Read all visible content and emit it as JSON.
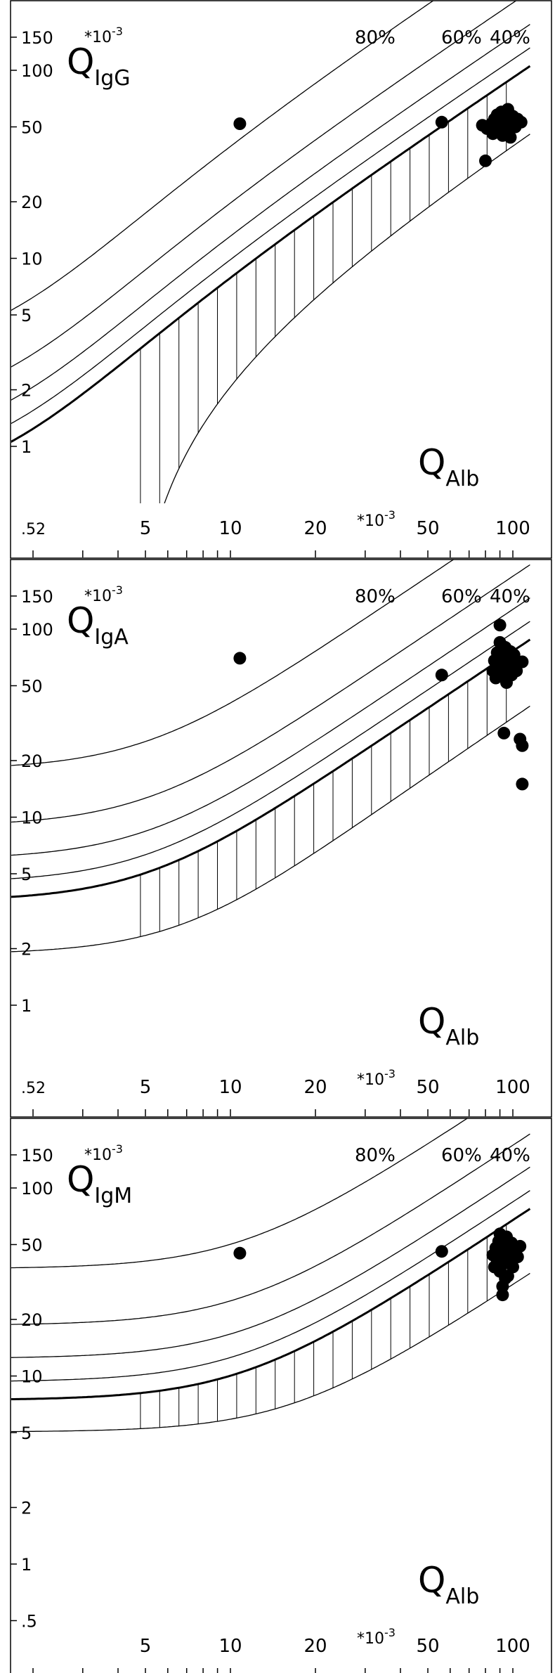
{
  "chart_data": [
    {
      "type": "scatter",
      "title": "",
      "ylabel": "Q",
      "ylabel_sub": "IgG",
      "ylabel_unit": "*10",
      "ylabel_unit_exp": "-3",
      "xlabel": "Q",
      "xlabel_sub": "Alb",
      "xlabel_unit": "*10",
      "xlabel_unit_exp": "-3",
      "x_scale": "log",
      "y_scale": "log",
      "xlim": [
        2,
        110
      ],
      "ylim": [
        0.4,
        170
      ],
      "x_ticks": [
        ".5",
        "5",
        "10",
        "20",
        "50",
        "100"
      ],
      "x_tick_values": [
        2,
        5,
        10,
        20,
        50,
        100
      ],
      "x_first_tick_prefix": ".5",
      "x_first_tick_sub": "2",
      "y_ticks": [
        "150",
        "100",
        "50",
        "20",
        "10",
        "5",
        "2",
        "1"
      ],
      "y_tick_values": [
        150,
        100,
        50,
        20,
        10,
        5,
        2,
        1
      ],
      "curve_labels": [
        "80%",
        "60%",
        "40%"
      ],
      "curve_params": {
        "a": 0.93,
        "b": 6e-06,
        "c": 1.7
      },
      "curves": [
        {
          "name": "80%",
          "fraction": 0.8
        },
        {
          "name": "60%",
          "fraction": 0.6
        },
        {
          "name": "40%",
          "fraction": 0.4
        },
        {
          "name": "20%",
          "fraction": 0.2
        },
        {
          "name": "upper limit",
          "fraction": 0,
          "bold": true
        },
        {
          "name": "lower limit",
          "fraction": -1
        }
      ],
      "points": [
        {
          "x": 10.8,
          "y": 52
        },
        {
          "x": 56,
          "y": 53
        },
        {
          "x": 80,
          "y": 33
        },
        {
          "x": 78,
          "y": 51
        },
        {
          "x": 81,
          "y": 49
        },
        {
          "x": 84,
          "y": 52
        },
        {
          "x": 86,
          "y": 55
        },
        {
          "x": 87,
          "y": 50
        },
        {
          "x": 88,
          "y": 58
        },
        {
          "x": 89,
          "y": 47
        },
        {
          "x": 90,
          "y": 53
        },
        {
          "x": 91,
          "y": 60
        },
        {
          "x": 92,
          "y": 45
        },
        {
          "x": 93,
          "y": 51
        },
        {
          "x": 94,
          "y": 56
        },
        {
          "x": 95,
          "y": 49
        },
        {
          "x": 96,
          "y": 62
        },
        {
          "x": 97,
          "y": 54
        },
        {
          "x": 98,
          "y": 44
        },
        {
          "x": 99,
          "y": 52
        },
        {
          "x": 100,
          "y": 57
        },
        {
          "x": 102,
          "y": 50
        },
        {
          "x": 104,
          "y": 55
        },
        {
          "x": 107,
          "y": 53
        },
        {
          "x": 85,
          "y": 46
        },
        {
          "x": 92,
          "y": 57
        }
      ]
    },
    {
      "type": "scatter",
      "title": "",
      "ylabel": "Q",
      "ylabel_sub": "IgA",
      "ylabel_unit": "*10",
      "ylabel_unit_exp": "-3",
      "xlabel": "Q",
      "xlabel_sub": "Alb",
      "xlabel_unit": "*10",
      "xlabel_unit_exp": "-3",
      "x_scale": "log",
      "y_scale": "log",
      "xlim": [
        2,
        110
      ],
      "ylim": [
        0.4,
        170
      ],
      "x_ticks": [
        ".5",
        "5",
        "10",
        "20",
        "50",
        "100"
      ],
      "x_tick_values": [
        2,
        5,
        10,
        20,
        50,
        100
      ],
      "x_first_tick_prefix": ".5",
      "x_first_tick_sub": "2",
      "y_ticks": [
        "150",
        "100",
        "50",
        "20",
        "10",
        "5",
        "2",
        "1"
      ],
      "y_tick_values": [
        150,
        100,
        50,
        20,
        10,
        5,
        2,
        1
      ],
      "curve_labels": [
        "80%",
        "60%",
        "40%"
      ],
      "curve_params": {
        "a": 0.77,
        "b": 3.1e-05,
        "c": 0.71
      },
      "curves": [
        {
          "name": "80%",
          "fraction": 0.8
        },
        {
          "name": "60%",
          "fraction": 0.6
        },
        {
          "name": "40%",
          "fraction": 0.4
        },
        {
          "name": "20%",
          "fraction": 0.2
        },
        {
          "name": "upper limit",
          "fraction": 0,
          "bold": true
        },
        {
          "name": "lower limit",
          "fraction": -1
        }
      ],
      "points": [
        {
          "x": 10.8,
          "y": 70
        },
        {
          "x": 56,
          "y": 57
        },
        {
          "x": 90,
          "y": 105
        },
        {
          "x": 85,
          "y": 60
        },
        {
          "x": 86,
          "y": 68
        },
        {
          "x": 87,
          "y": 55
        },
        {
          "x": 88,
          "y": 75
        },
        {
          "x": 89,
          "y": 63
        },
        {
          "x": 90,
          "y": 85
        },
        {
          "x": 91,
          "y": 58
        },
        {
          "x": 92,
          "y": 72
        },
        {
          "x": 93,
          "y": 66
        },
        {
          "x": 94,
          "y": 80
        },
        {
          "x": 95,
          "y": 52
        },
        {
          "x": 96,
          "y": 70
        },
        {
          "x": 97,
          "y": 62
        },
        {
          "x": 98,
          "y": 76
        },
        {
          "x": 99,
          "y": 57
        },
        {
          "x": 100,
          "y": 65
        },
        {
          "x": 101,
          "y": 73
        },
        {
          "x": 103,
          "y": 60
        },
        {
          "x": 108,
          "y": 67
        },
        {
          "x": 93,
          "y": 28
        },
        {
          "x": 106,
          "y": 26
        },
        {
          "x": 108,
          "y": 24
        },
        {
          "x": 108,
          "y": 15
        }
      ]
    },
    {
      "type": "scatter",
      "title": "",
      "ylabel": "Q",
      "ylabel_sub": "IgM",
      "ylabel_unit": "*10",
      "ylabel_unit_exp": "-3",
      "xlabel": "Q",
      "xlabel_sub": "Alb",
      "xlabel_unit": "*10",
      "xlabel_unit_exp": "-3",
      "x_scale": "log",
      "y_scale": "log",
      "xlim": [
        2,
        110
      ],
      "ylim": [
        0.4,
        170
      ],
      "x_ticks": [
        "5",
        "10",
        "20",
        "50",
        "100"
      ],
      "x_tick_values": [
        5,
        10,
        20,
        50,
        100
      ],
      "x_first_tick_prefix": "",
      "x_first_tick_sub": "",
      "y_ticks": [
        "150",
        "100",
        "50",
        "20",
        "10",
        "5",
        "2",
        "1",
        ".5"
      ],
      "y_tick_values": [
        150,
        100,
        50,
        20,
        10,
        5,
        2,
        1,
        0.5
      ],
      "curve_labels": [
        "80%",
        "60%",
        "40%"
      ],
      "curve_params": {
        "a": 0.67,
        "b": 0.00012,
        "c": -0.1
      },
      "curves": [
        {
          "name": "80%",
          "fraction": 0.8
        },
        {
          "name": "60%",
          "fraction": 0.6
        },
        {
          "name": "40%",
          "fraction": 0.4
        },
        {
          "name": "20%",
          "fraction": 0.2
        },
        {
          "name": "upper limit",
          "fraction": 0,
          "bold": true
        },
        {
          "name": "lower limit",
          "fraction": -1
        }
      ],
      "points": [
        {
          "x": 10.8,
          "y": 45
        },
        {
          "x": 56,
          "y": 46
        },
        {
          "x": 85,
          "y": 44
        },
        {
          "x": 86,
          "y": 38
        },
        {
          "x": 87,
          "y": 48
        },
        {
          "x": 88,
          "y": 41
        },
        {
          "x": 89,
          "y": 52
        },
        {
          "x": 90,
          "y": 36
        },
        {
          "x": 91,
          "y": 45
        },
        {
          "x": 92,
          "y": 30
        },
        {
          "x": 93,
          "y": 50
        },
        {
          "x": 94,
          "y": 40
        },
        {
          "x": 95,
          "y": 55
        },
        {
          "x": 96,
          "y": 34
        },
        {
          "x": 97,
          "y": 47
        },
        {
          "x": 98,
          "y": 42
        },
        {
          "x": 99,
          "y": 51
        },
        {
          "x": 100,
          "y": 38
        },
        {
          "x": 102,
          "y": 46
        },
        {
          "x": 104,
          "y": 43
        },
        {
          "x": 106,
          "y": 49
        },
        {
          "x": 92,
          "y": 27
        },
        {
          "x": 94,
          "y": 33
        },
        {
          "x": 90,
          "y": 57
        }
      ]
    }
  ]
}
